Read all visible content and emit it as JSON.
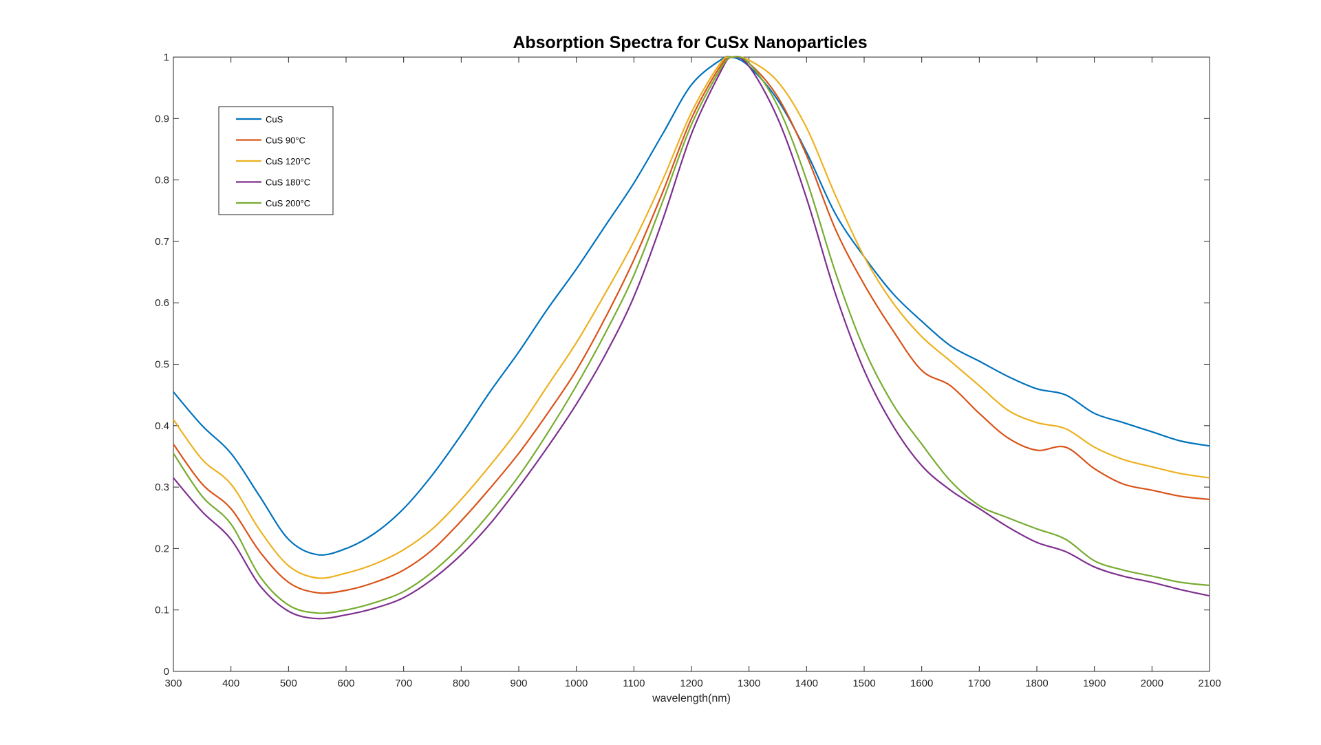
{
  "chart_data": {
    "type": "line",
    "title": "Absorption Spectra for CuSx Nanoparticles",
    "xlabel": "wavelength(nm)",
    "ylabel": "",
    "xlim": [
      300,
      2100
    ],
    "ylim": [
      0,
      1
    ],
    "xticks": [
      "300",
      "400",
      "500",
      "600",
      "700",
      "800",
      "900",
      "1000",
      "1100",
      "1200",
      "1300",
      "1400",
      "1500",
      "1600",
      "1700",
      "1800",
      "1900",
      "2000",
      "2100"
    ],
    "yticks": [
      "0",
      "0.1",
      "0.2",
      "0.3",
      "0.4",
      "0.5",
      "0.6",
      "0.7",
      "0.8",
      "0.9",
      "1"
    ],
    "grid": false,
    "legend_position": "top-left",
    "x": [
      300,
      350,
      400,
      450,
      500,
      550,
      600,
      650,
      700,
      750,
      800,
      850,
      900,
      950,
      1000,
      1050,
      1100,
      1150,
      1200,
      1250,
      1270,
      1300,
      1350,
      1400,
      1450,
      1500,
      1550,
      1600,
      1650,
      1700,
      1750,
      1800,
      1850,
      1900,
      1950,
      2000,
      2050,
      2100
    ],
    "series": [
      {
        "name": "CuS",
        "color": "#0072BD",
        "values": [
          0.455,
          0.4,
          0.355,
          0.285,
          0.215,
          0.19,
          0.2,
          0.225,
          0.265,
          0.32,
          0.385,
          0.455,
          0.52,
          0.59,
          0.655,
          0.725,
          0.795,
          0.875,
          0.955,
          0.995,
          1.0,
          0.985,
          0.93,
          0.845,
          0.745,
          0.675,
          0.615,
          0.57,
          0.53,
          0.505,
          0.48,
          0.46,
          0.45,
          0.42,
          0.405,
          0.39,
          0.375,
          0.367
        ]
      },
      {
        "name": "CuS 90°C",
        "color": "#D95319",
        "values": [
          0.37,
          0.305,
          0.265,
          0.195,
          0.145,
          0.128,
          0.132,
          0.145,
          0.165,
          0.198,
          0.245,
          0.298,
          0.355,
          0.42,
          0.49,
          0.575,
          0.67,
          0.78,
          0.9,
          0.985,
          1.0,
          0.99,
          0.935,
          0.84,
          0.72,
          0.63,
          0.555,
          0.49,
          0.465,
          0.42,
          0.38,
          0.36,
          0.365,
          0.33,
          0.305,
          0.295,
          0.285,
          0.28
        ]
      },
      {
        "name": "CuS 120°C",
        "color": "#EDB120",
        "values": [
          0.41,
          0.345,
          0.305,
          0.23,
          0.172,
          0.152,
          0.16,
          0.175,
          0.198,
          0.232,
          0.28,
          0.335,
          0.395,
          0.465,
          0.535,
          0.615,
          0.7,
          0.8,
          0.91,
          0.99,
          1.0,
          0.995,
          0.96,
          0.885,
          0.775,
          0.675,
          0.6,
          0.545,
          0.505,
          0.465,
          0.425,
          0.405,
          0.395,
          0.365,
          0.345,
          0.333,
          0.322,
          0.315
        ]
      },
      {
        "name": "CuS 180°C",
        "color": "#7E2F8E",
        "values": [
          0.315,
          0.26,
          0.215,
          0.14,
          0.098,
          0.086,
          0.092,
          0.103,
          0.12,
          0.15,
          0.19,
          0.24,
          0.3,
          0.365,
          0.435,
          0.515,
          0.61,
          0.735,
          0.875,
          0.975,
          1.0,
          0.985,
          0.9,
          0.77,
          0.615,
          0.49,
          0.4,
          0.335,
          0.295,
          0.265,
          0.235,
          0.21,
          0.195,
          0.17,
          0.155,
          0.145,
          0.133,
          0.123
        ]
      },
      {
        "name": "CuS 200°C",
        "color": "#77AC30",
        "values": [
          0.355,
          0.285,
          0.24,
          0.155,
          0.108,
          0.095,
          0.1,
          0.112,
          0.13,
          0.162,
          0.205,
          0.258,
          0.318,
          0.388,
          0.465,
          0.55,
          0.645,
          0.765,
          0.89,
          0.98,
          1.0,
          0.99,
          0.92,
          0.8,
          0.65,
          0.525,
          0.435,
          0.37,
          0.31,
          0.27,
          0.25,
          0.232,
          0.215,
          0.18,
          0.165,
          0.155,
          0.145,
          0.14
        ]
      }
    ]
  }
}
